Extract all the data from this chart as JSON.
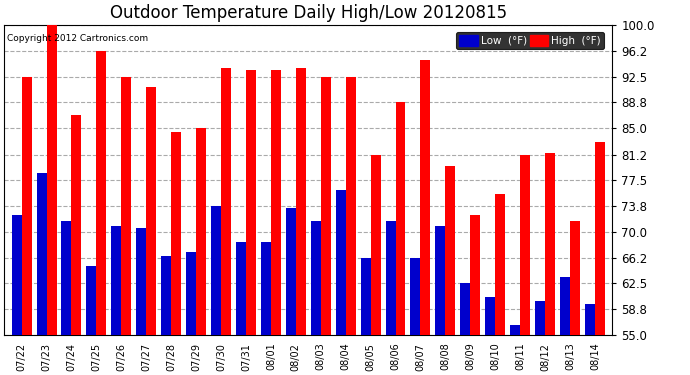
{
  "title": "Outdoor Temperature Daily High/Low 20120815",
  "copyright": "Copyright 2012 Cartronics.com",
  "legend_low": "Low  (°F)",
  "legend_high": "High  (°F)",
  "dates": [
    "07/22",
    "07/23",
    "07/24",
    "07/25",
    "07/26",
    "07/27",
    "07/28",
    "07/29",
    "07/30",
    "07/31",
    "08/01",
    "08/02",
    "08/03",
    "08/04",
    "08/05",
    "08/06",
    "08/07",
    "08/08",
    "08/09",
    "08/10",
    "08/11",
    "08/12",
    "08/13",
    "08/14"
  ],
  "highs": [
    92.5,
    100.0,
    87.0,
    96.2,
    92.5,
    91.0,
    84.5,
    85.0,
    93.8,
    93.5,
    93.5,
    93.8,
    92.5,
    92.5,
    81.2,
    88.8,
    95.0,
    79.5,
    72.5,
    75.5,
    81.2,
    81.5,
    71.5,
    83.0
  ],
  "lows": [
    72.5,
    78.5,
    71.5,
    65.0,
    70.8,
    70.5,
    66.5,
    67.0,
    73.8,
    68.5,
    68.5,
    73.5,
    71.5,
    76.0,
    66.2,
    71.5,
    66.2,
    70.8,
    62.5,
    60.5,
    56.5,
    60.0,
    63.5,
    59.5
  ],
  "ylim": [
    55.0,
    100.0
  ],
  "yticks": [
    55.0,
    58.8,
    62.5,
    66.2,
    70.0,
    73.8,
    77.5,
    81.2,
    85.0,
    88.8,
    92.5,
    96.2,
    100.0
  ],
  "ytick_labels": [
    "55.0",
    "58.8",
    "62.5",
    "66.2",
    "70.0",
    "73.8",
    "77.5",
    "81.2",
    "85.0",
    "88.8",
    "92.5",
    "96.2",
    "100.0"
  ],
  "color_high": "#ff0000",
  "color_low": "#0000cc",
  "bg_color": "#ffffff",
  "grid_color": "#aaaaaa",
  "title_fontsize": 12,
  "bar_width": 0.4,
  "figsize": [
    6.9,
    3.75
  ],
  "dpi": 100
}
